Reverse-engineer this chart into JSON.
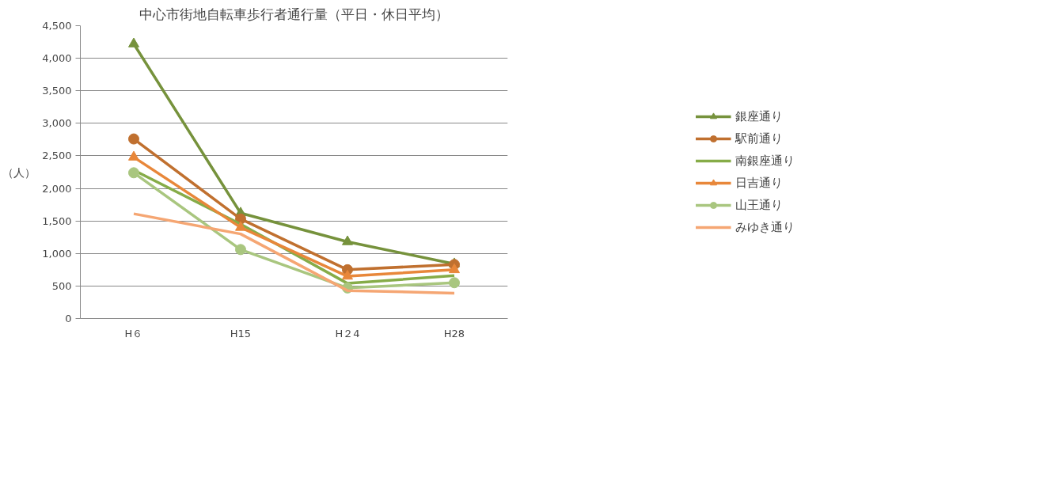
{
  "chart_data": {
    "type": "line",
    "title": "中心市街地自転車歩行者通行量（平日・休日平均）",
    "ylabel": "（人）",
    "categories": [
      "H６",
      "H15",
      "H２4",
      "H28"
    ],
    "ylim": [
      0,
      4500
    ],
    "yticks": [
      {
        "value": 0,
        "label": "0"
      },
      {
        "value": 500,
        "label": "500"
      },
      {
        "value": 1000,
        "label": "1,000"
      },
      {
        "value": 1500,
        "label": "1,500"
      },
      {
        "value": 2000,
        "label": "2,000"
      },
      {
        "value": 2500,
        "label": "2,500"
      },
      {
        "value": 3000,
        "label": "3,000"
      },
      {
        "value": 3500,
        "label": "3,500"
      },
      {
        "value": 4000,
        "label": "4,000"
      },
      {
        "value": 4500,
        "label": "4,500"
      }
    ],
    "grid": "y",
    "legend": "right",
    "series": [
      {
        "name": "銀座通り",
        "color": "#76923c",
        "marker": "triangle",
        "values": [
          4220,
          1620,
          1180,
          840
        ]
      },
      {
        "name": "駅前通り",
        "color": "#c0702f",
        "marker": "circle",
        "values": [
          2760,
          1530,
          750,
          830
        ]
      },
      {
        "name": "南銀座通り",
        "color": "#86ac48",
        "marker": "none",
        "values": [
          2280,
          1450,
          540,
          660
        ]
      },
      {
        "name": "日吉通り",
        "color": "#e8873a",
        "marker": "triangle",
        "values": [
          2480,
          1400,
          650,
          750
        ]
      },
      {
        "name": "山王通り",
        "color": "#a9c67f",
        "marker": "circle",
        "values": [
          2240,
          1060,
          470,
          550
        ]
      },
      {
        "name": "みゆき通り",
        "color": "#f5a673",
        "marker": "none",
        "values": [
          1610,
          1300,
          430,
          390
        ]
      }
    ]
  }
}
